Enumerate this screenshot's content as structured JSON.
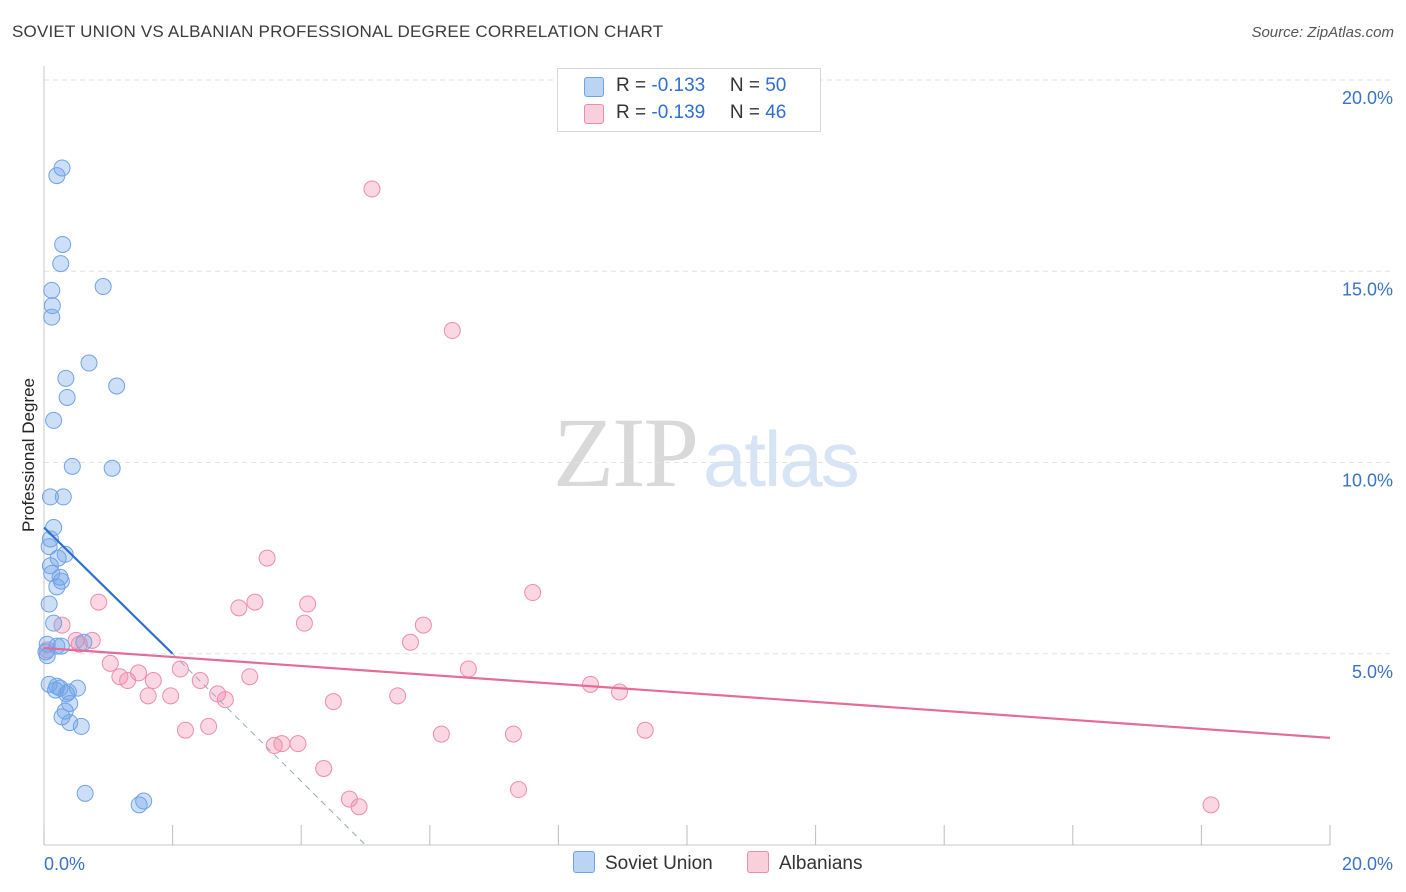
{
  "header": {
    "title": "SOVIET UNION VS ALBANIAN PROFESSIONAL DEGREE CORRELATION CHART",
    "source": "Source: ZipAtlas.com"
  },
  "watermark": {
    "zip": "ZIP",
    "atlas": "atlas"
  },
  "legend": {
    "rows": [
      {
        "r_label": "R = ",
        "r_value": "-0.133",
        "n_label": "N = ",
        "n_value": "50"
      },
      {
        "r_label": "R = ",
        "r_value": "-0.139",
        "n_label": "N = ",
        "n_value": "46"
      }
    ]
  },
  "chart_data": {
    "type": "scatter",
    "title": "SOVIET UNION VS ALBANIAN PROFESSIONAL DEGREE CORRELATION CHART",
    "xlabel": "",
    "ylabel": "Professional Degree",
    "xlim": [
      0,
      20
    ],
    "ylim": [
      0,
      20
    ],
    "x_tick_labels": [
      "0.0%",
      "20.0%"
    ],
    "y_ticks": [
      5,
      10,
      15,
      20
    ],
    "y_tick_labels": [
      "5.0%",
      "10.0%",
      "15.0%",
      "20.0%"
    ],
    "grid": true,
    "colors": {
      "soviet": "#6fa3e8",
      "albanian": "#f08cab",
      "soviet_line": "#2f6fd0",
      "albanian_line": "#e56b98"
    },
    "series": [
      {
        "name": "Soviet Union",
        "r": -0.133,
        "n": 50,
        "trend": {
          "x0": 0.0,
          "y0": 8.3,
          "x1": 2.0,
          "y1": 5.0,
          "dash_to_x": 5.0,
          "dash_to_y": 0.0
        },
        "points": [
          [
            0.28,
            17.7
          ],
          [
            0.2,
            17.5
          ],
          [
            0.29,
            15.7
          ],
          [
            0.26,
            15.2
          ],
          [
            0.92,
            14.6
          ],
          [
            0.12,
            14.5
          ],
          [
            0.13,
            14.1
          ],
          [
            0.12,
            13.8
          ],
          [
            0.7,
            12.6
          ],
          [
            0.34,
            12.2
          ],
          [
            1.13,
            12.0
          ],
          [
            0.36,
            11.7
          ],
          [
            0.15,
            11.1
          ],
          [
            0.44,
            9.9
          ],
          [
            1.06,
            9.85
          ],
          [
            0.1,
            9.1
          ],
          [
            0.3,
            9.1
          ],
          [
            0.15,
            8.3
          ],
          [
            0.1,
            8.0
          ],
          [
            0.08,
            7.8
          ],
          [
            0.33,
            7.6
          ],
          [
            0.22,
            7.5
          ],
          [
            0.1,
            7.3
          ],
          [
            0.12,
            7.1
          ],
          [
            0.25,
            7.0
          ],
          [
            0.27,
            6.9
          ],
          [
            0.2,
            6.75
          ],
          [
            0.08,
            6.3
          ],
          [
            0.15,
            5.8
          ],
          [
            0.62,
            5.3
          ],
          [
            0.05,
            5.25
          ],
          [
            0.2,
            5.2
          ],
          [
            0.27,
            5.2
          ],
          [
            0.03,
            5.05
          ],
          [
            0.05,
            4.95
          ],
          [
            0.08,
            4.2
          ],
          [
            0.2,
            4.15
          ],
          [
            0.18,
            4.05
          ],
          [
            0.25,
            4.1
          ],
          [
            0.52,
            4.1
          ],
          [
            0.38,
            4.0
          ],
          [
            0.35,
            3.95
          ],
          [
            0.4,
            3.7
          ],
          [
            0.33,
            3.5
          ],
          [
            0.28,
            3.35
          ],
          [
            0.4,
            3.2
          ],
          [
            0.58,
            3.1
          ],
          [
            0.64,
            1.35
          ],
          [
            1.55,
            1.15
          ],
          [
            1.48,
            1.05
          ]
        ]
      },
      {
        "name": "Albanians",
        "r": -0.139,
        "n": 46,
        "trend": {
          "x0": 0.0,
          "y0": 5.15,
          "x1": 20.0,
          "y1": 2.8
        },
        "points": [
          [
            5.1,
            17.15
          ],
          [
            6.35,
            13.45
          ],
          [
            3.47,
            7.5
          ],
          [
            7.6,
            6.6
          ],
          [
            0.85,
            6.35
          ],
          [
            3.28,
            6.35
          ],
          [
            4.1,
            6.3
          ],
          [
            3.03,
            6.2
          ],
          [
            4.05,
            5.8
          ],
          [
            5.9,
            5.75
          ],
          [
            0.28,
            5.75
          ],
          [
            0.5,
            5.35
          ],
          [
            0.75,
            5.35
          ],
          [
            5.7,
            5.3
          ],
          [
            0.55,
            5.25
          ],
          [
            0.05,
            5.1
          ],
          [
            1.03,
            4.75
          ],
          [
            2.12,
            4.6
          ],
          [
            6.6,
            4.6
          ],
          [
            1.47,
            4.5
          ],
          [
            1.18,
            4.4
          ],
          [
            3.2,
            4.4
          ],
          [
            1.3,
            4.3
          ],
          [
            1.7,
            4.3
          ],
          [
            2.43,
            4.3
          ],
          [
            8.5,
            4.2
          ],
          [
            8.95,
            4.0
          ],
          [
            2.7,
            3.95
          ],
          [
            1.62,
            3.9
          ],
          [
            1.97,
            3.9
          ],
          [
            5.5,
            3.9
          ],
          [
            2.82,
            3.8
          ],
          [
            4.5,
            3.75
          ],
          [
            9.35,
            3.0
          ],
          [
            2.56,
            3.1
          ],
          [
            2.2,
            3.0
          ],
          [
            6.18,
            2.9
          ],
          [
            7.3,
            2.9
          ],
          [
            3.7,
            2.65
          ],
          [
            3.95,
            2.65
          ],
          [
            3.58,
            2.6
          ],
          [
            4.35,
            2.0
          ],
          [
            7.38,
            1.45
          ],
          [
            4.75,
            1.2
          ],
          [
            4.9,
            1.0
          ],
          [
            18.15,
            1.05
          ]
        ]
      }
    ]
  }
}
